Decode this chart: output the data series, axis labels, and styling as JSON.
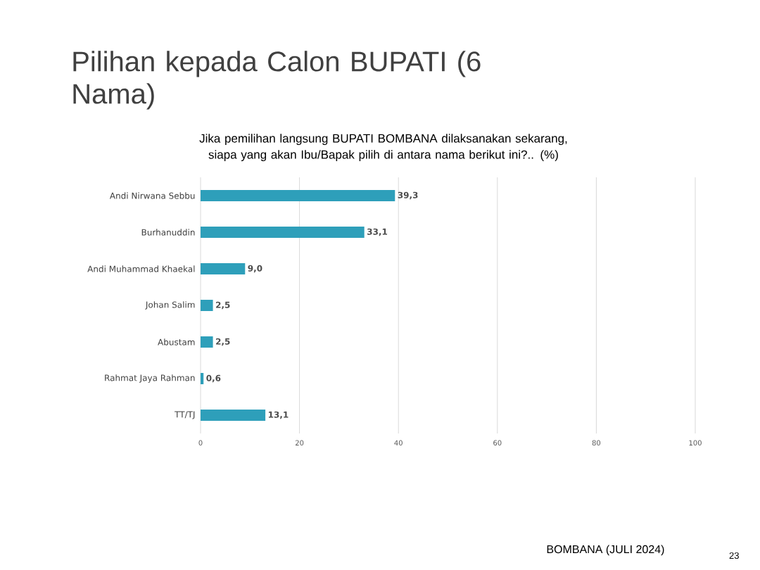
{
  "chart_data": {
    "type": "bar",
    "orientation": "horizontal",
    "title": "Pilihan kepada Calon BUPATI (6 Nama)",
    "subtitle": "Jika pemilihan langsung BUPATI BOMBANA dilaksanakan sekarang, siapa yang akan Ibu/Bapak pilih di antara nama berikut ini?.. (%)",
    "categories": [
      "Andi Nirwana Sebbu",
      "Burhanuddin",
      "Andi Muhammad Khaekal",
      "Johan Salim",
      "Abustam",
      "Rahmat Jaya Rahman",
      "TT/TJ"
    ],
    "values": [
      39.3,
      33.1,
      9.0,
      2.5,
      2.5,
      0.6,
      13.1
    ],
    "value_labels": [
      "39,3",
      "33,1",
      "9,0",
      "2,5",
      "2,5",
      "0,6",
      "13,1"
    ],
    "color": "#2e9fba",
    "xlim": [
      0,
      100
    ],
    "xticks": [
      0,
      20,
      40,
      60,
      80,
      100
    ],
    "grid": "x",
    "annotations": [
      "BOMBANA (JULI 2024)",
      "23"
    ]
  }
}
